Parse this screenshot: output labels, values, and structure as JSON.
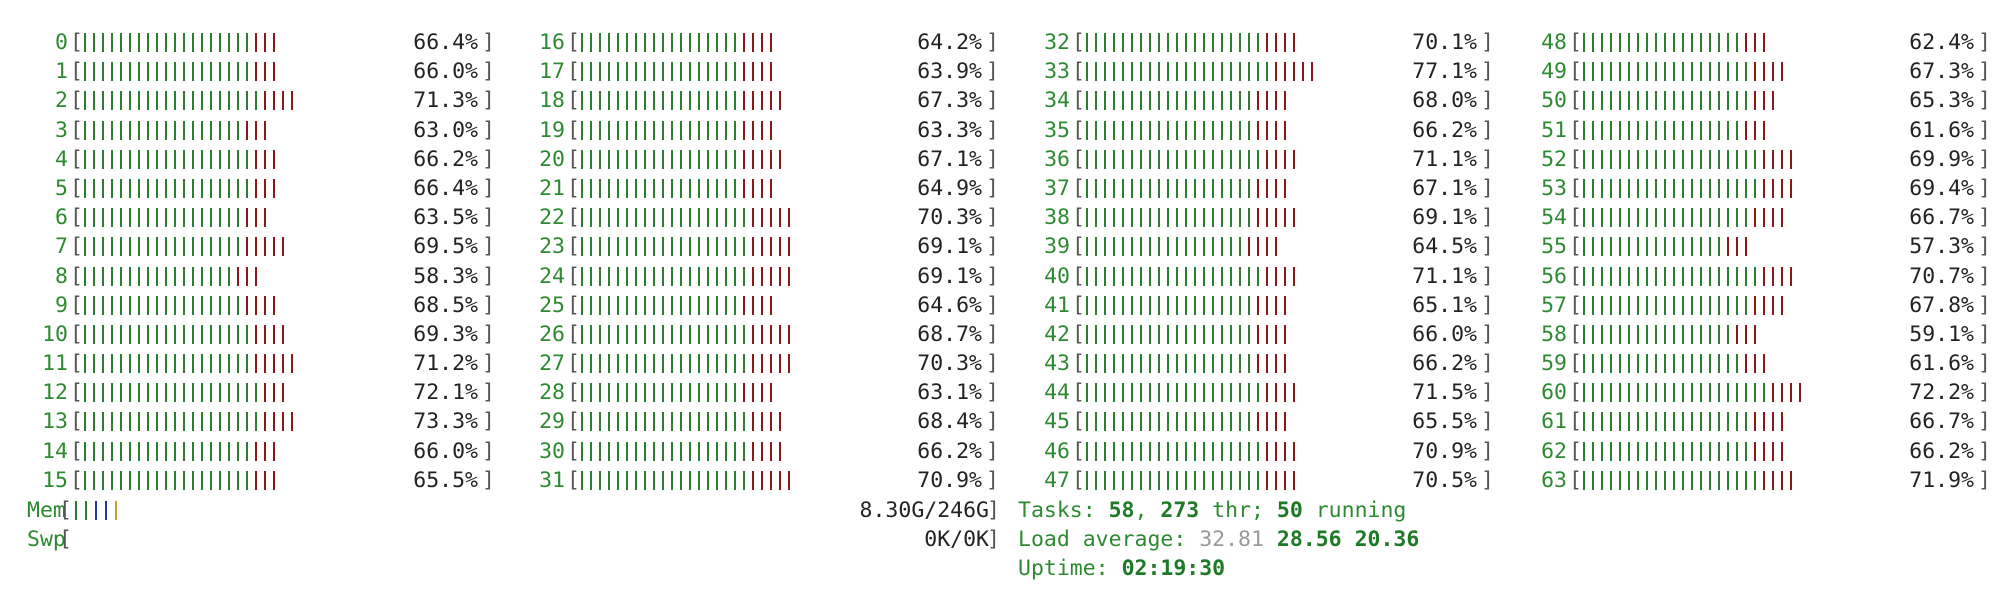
{
  "cpus": [
    {
      "id": "0",
      "percent": "66.4%",
      "green": 19,
      "red": 3
    },
    {
      "id": "1",
      "percent": "66.0%",
      "green": 19,
      "red": 3
    },
    {
      "id": "2",
      "percent": "71.3%",
      "green": 20,
      "red": 4
    },
    {
      "id": "3",
      "percent": "63.0%",
      "green": 18,
      "red": 3
    },
    {
      "id": "4",
      "percent": "66.2%",
      "green": 19,
      "red": 3
    },
    {
      "id": "5",
      "percent": "66.4%",
      "green": 19,
      "red": 3
    },
    {
      "id": "6",
      "percent": "63.5%",
      "green": 18,
      "red": 3
    },
    {
      "id": "7",
      "percent": "69.5%",
      "green": 18,
      "red": 5
    },
    {
      "id": "8",
      "percent": "58.3%",
      "green": 17,
      "red": 3
    },
    {
      "id": "9",
      "percent": "68.5%",
      "green": 18,
      "red": 4
    },
    {
      "id": "10",
      "percent": "69.3%",
      "green": 19,
      "red": 4
    },
    {
      "id": "11",
      "percent": "71.2%",
      "green": 19,
      "red": 5
    },
    {
      "id": "12",
      "percent": "72.1%",
      "green": 20,
      "red": 3
    },
    {
      "id": "13",
      "percent": "73.3%",
      "green": 20,
      "red": 4
    },
    {
      "id": "14",
      "percent": "66.0%",
      "green": 19,
      "red": 3
    },
    {
      "id": "15",
      "percent": "65.5%",
      "green": 19,
      "red": 3
    },
    {
      "id": "16",
      "percent": "64.2%",
      "green": 18,
      "red": 4
    },
    {
      "id": "17",
      "percent": "63.9%",
      "green": 18,
      "red": 4
    },
    {
      "id": "18",
      "percent": "67.3%",
      "green": 18,
      "red": 5
    },
    {
      "id": "19",
      "percent": "63.3%",
      "green": 18,
      "red": 4
    },
    {
      "id": "20",
      "percent": "67.1%",
      "green": 18,
      "red": 5
    },
    {
      "id": "21",
      "percent": "64.9%",
      "green": 18,
      "red": 4
    },
    {
      "id": "22",
      "percent": "70.3%",
      "green": 19,
      "red": 5
    },
    {
      "id": "23",
      "percent": "69.1%",
      "green": 19,
      "red": 5
    },
    {
      "id": "24",
      "percent": "69.1%",
      "green": 19,
      "red": 5
    },
    {
      "id": "25",
      "percent": "64.6%",
      "green": 18,
      "red": 4
    },
    {
      "id": "26",
      "percent": "68.7%",
      "green": 19,
      "red": 5
    },
    {
      "id": "27",
      "percent": "70.3%",
      "green": 19,
      "red": 5
    },
    {
      "id": "28",
      "percent": "63.1%",
      "green": 18,
      "red": 4
    },
    {
      "id": "29",
      "percent": "68.4%",
      "green": 19,
      "red": 4
    },
    {
      "id": "30",
      "percent": "66.2%",
      "green": 19,
      "red": 4
    },
    {
      "id": "31",
      "percent": "70.9%",
      "green": 19,
      "red": 5
    },
    {
      "id": "32",
      "percent": "70.1%",
      "green": 20,
      "red": 4
    },
    {
      "id": "33",
      "percent": "77.1%",
      "green": 21,
      "red": 5
    },
    {
      "id": "34",
      "percent": "68.0%",
      "green": 19,
      "red": 4
    },
    {
      "id": "35",
      "percent": "66.2%",
      "green": 19,
      "red": 4
    },
    {
      "id": "36",
      "percent": "71.1%",
      "green": 20,
      "red": 4
    },
    {
      "id": "37",
      "percent": "67.1%",
      "green": 19,
      "red": 4
    },
    {
      "id": "38",
      "percent": "69.1%",
      "green": 19,
      "red": 5
    },
    {
      "id": "39",
      "percent": "64.5%",
      "green": 18,
      "red": 4
    },
    {
      "id": "40",
      "percent": "71.1%",
      "green": 20,
      "red": 4
    },
    {
      "id": "41",
      "percent": "65.1%",
      "green": 19,
      "red": 4
    },
    {
      "id": "42",
      "percent": "66.0%",
      "green": 19,
      "red": 4
    },
    {
      "id": "43",
      "percent": "66.2%",
      "green": 19,
      "red": 4
    },
    {
      "id": "44",
      "percent": "71.5%",
      "green": 20,
      "red": 4
    },
    {
      "id": "45",
      "percent": "65.5%",
      "green": 19,
      "red": 4
    },
    {
      "id": "46",
      "percent": "70.9%",
      "green": 20,
      "red": 4
    },
    {
      "id": "47",
      "percent": "70.5%",
      "green": 20,
      "red": 4
    },
    {
      "id": "48",
      "percent": "62.4%",
      "green": 18,
      "red": 3
    },
    {
      "id": "49",
      "percent": "67.3%",
      "green": 19,
      "red": 4
    },
    {
      "id": "50",
      "percent": "65.3%",
      "green": 19,
      "red": 3
    },
    {
      "id": "51",
      "percent": "61.6%",
      "green": 18,
      "red": 3
    },
    {
      "id": "52",
      "percent": "69.9%",
      "green": 20,
      "red": 4
    },
    {
      "id": "53",
      "percent": "69.4%",
      "green": 20,
      "red": 4
    },
    {
      "id": "54",
      "percent": "66.7%",
      "green": 19,
      "red": 4
    },
    {
      "id": "55",
      "percent": "57.3%",
      "green": 16,
      "red": 3
    },
    {
      "id": "56",
      "percent": "70.7%",
      "green": 20,
      "red": 4
    },
    {
      "id": "57",
      "percent": "67.8%",
      "green": 19,
      "red": 4
    },
    {
      "id": "58",
      "percent": "59.1%",
      "green": 17,
      "red": 3
    },
    {
      "id": "59",
      "percent": "61.6%",
      "green": 18,
      "red": 3
    },
    {
      "id": "60",
      "percent": "72.2%",
      "green": 21,
      "red": 4
    },
    {
      "id": "61",
      "percent": "66.7%",
      "green": 19,
      "red": 4
    },
    {
      "id": "62",
      "percent": "66.2%",
      "green": 19,
      "red": 4
    },
    {
      "id": "63",
      "percent": "71.9%",
      "green": 20,
      "red": 4
    }
  ],
  "memory": {
    "label": "Mem",
    "value": "8.30G/246G"
  },
  "swap": {
    "label": "Swp",
    "value": "0K/0K"
  },
  "tasks": {
    "label": "Tasks: ",
    "count": "58",
    "sep": ", ",
    "threads": "273",
    "thr_suffix": " thr; ",
    "running": "50",
    "running_suffix": " running"
  },
  "load": {
    "label": "Load average: ",
    "one": "32.81",
    "five": "28.56",
    "fifteen": "20.36"
  },
  "uptime": {
    "label": "Uptime: ",
    "value": "02:19:30"
  },
  "colors": {
    "normal": "#2e7d32",
    "kernel": "#8b1a1a",
    "label": "#2e8a32",
    "buffers": "#2538a8",
    "cache": "#a0a0a0"
  }
}
